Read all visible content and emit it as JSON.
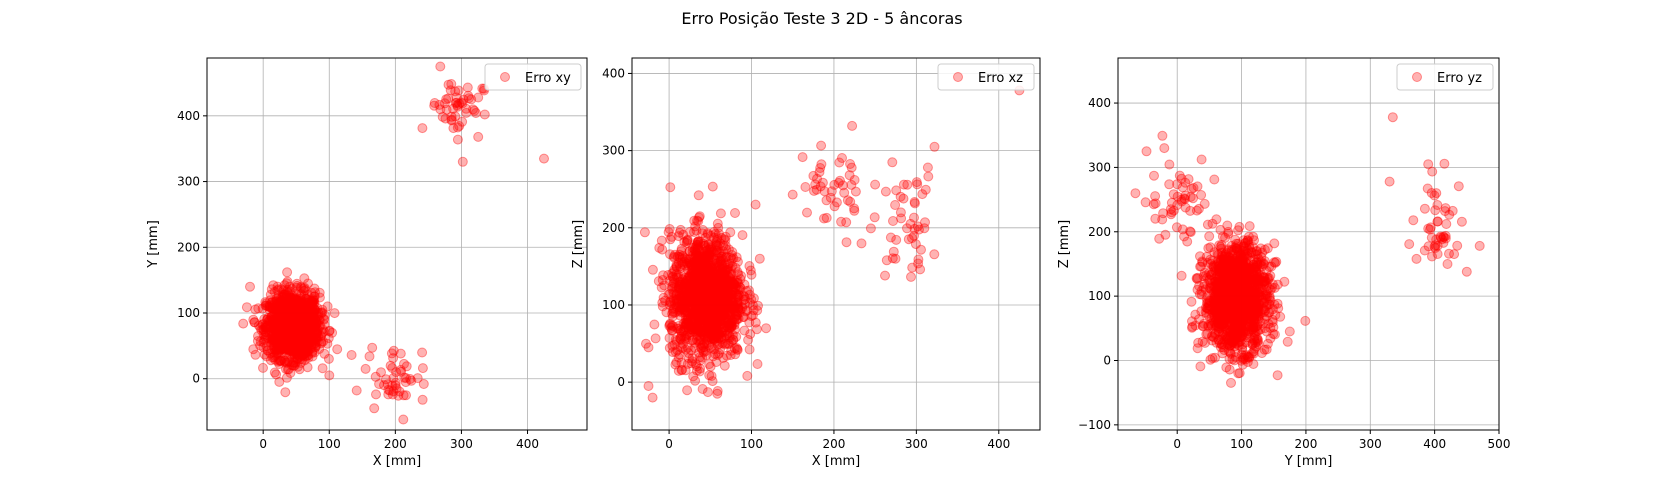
{
  "figure": {
    "suptitle": "Erro Posição Teste 3 2D - 5 âncoras"
  },
  "chart_data": [
    {
      "type": "scatter",
      "xlabel": "X [mm]",
      "ylabel": "Y [mm]",
      "xlim": [
        -85,
        490
      ],
      "ylim": [
        -78,
        488
      ],
      "xticks": [
        0,
        100,
        200,
        300,
        400
      ],
      "yticks": [
        0,
        100,
        200,
        300,
        400
      ],
      "xtick_labels": [
        "0",
        "100",
        "200",
        "300",
        "400"
      ],
      "ytick_labels": [
        "0",
        "100",
        "200",
        "300",
        "400"
      ],
      "grid": true,
      "legend": {
        "position": "top-right",
        "entries": [
          "Erro xy"
        ]
      },
      "marker_color": "#ff0000",
      "marker_alpha": 0.3,
      "series": [
        {
          "name": "Erro xy",
          "clusters": [
            {
              "center": [
                45,
                80
              ],
              "spread": [
                20,
                25
              ],
              "count": 1400
            },
            {
              "center": [
                200,
                8
              ],
              "spread": [
                22,
                22
              ],
              "count": 45
            },
            {
              "center": [
                292,
                415
              ],
              "spread": [
                20,
                22
              ],
              "count": 50
            }
          ],
          "points": [
            [
              425,
              335
            ],
            [
              302,
              330
            ],
            [
              268,
              475
            ],
            [
              243,
              -8
            ],
            [
              212,
              -62
            ],
            [
              168,
              -45
            ],
            [
              155,
              15
            ],
            [
              100,
              5
            ],
            [
              -20,
              140
            ],
            [
              -15,
              45
            ],
            [
              112,
              45
            ]
          ]
        }
      ]
    },
    {
      "type": "scatter",
      "xlabel": "X [mm]",
      "ylabel": "Z [mm]",
      "xlim": [
        -45,
        450
      ],
      "ylim": [
        -62,
        420
      ],
      "xticks": [
        0,
        100,
        200,
        300,
        400
      ],
      "yticks": [
        0,
        100,
        200,
        300,
        400
      ],
      "xtick_labels": [
        "0",
        "100",
        "200",
        "300",
        "400"
      ],
      "ytick_labels": [
        "0",
        "100",
        "200",
        "300",
        "400"
      ],
      "grid": true,
      "legend": {
        "position": "top-right",
        "entries": [
          "Erro xz"
        ]
      },
      "marker_color": "#ff0000",
      "marker_alpha": 0.3,
      "series": [
        {
          "name": "Erro xz",
          "clusters": [
            {
              "center": [
                45,
                110
              ],
              "spread": [
                22,
                40
              ],
              "count": 1400
            },
            {
              "center": [
                200,
                240
              ],
              "spread": [
                22,
                40
              ],
              "count": 45
            },
            {
              "center": [
                290,
                210
              ],
              "spread": [
                18,
                35
              ],
              "count": 45
            }
          ],
          "points": [
            [
              425,
              378
            ],
            [
              322,
              305
            ],
            [
              222,
              332
            ],
            [
              150,
              243
            ],
            [
              105,
              230
            ],
            [
              -20,
              -20
            ],
            [
              -25,
              -5
            ],
            [
              -25,
              45
            ],
            [
              110,
              160
            ],
            [
              262,
              138
            ]
          ]
        }
      ]
    },
    {
      "type": "scatter",
      "xlabel": "Y [mm]",
      "ylabel": "Z [mm]",
      "xlim": [
        -92,
        500
      ],
      "ylim": [
        -108,
        470
      ],
      "xticks": [
        0,
        100,
        200,
        300,
        400,
        500
      ],
      "yticks": [
        -100,
        0,
        100,
        200,
        300,
        400
      ],
      "xtick_labels": [
        "0",
        "100",
        "200",
        "300",
        "400",
        "500"
      ],
      "ytick_labels": [
        "−100",
        "0",
        "100",
        "200",
        "300",
        "400"
      ],
      "grid": true,
      "legend": {
        "position": "top-right",
        "entries": [
          "Erro yz"
        ]
      },
      "marker_color": "#ff0000",
      "marker_alpha": 0.3,
      "series": [
        {
          "name": "Erro yz",
          "clusters": [
            {
              "center": [
                92,
                98
              ],
              "spread": [
                25,
                40
              ],
              "count": 1400
            },
            {
              "center": [
                5,
                250
              ],
              "spread": [
                25,
                35
              ],
              "count": 55
            },
            {
              "center": [
                408,
                210
              ],
              "spread": [
                22,
                35
              ],
              "count": 45
            }
          ],
          "points": [
            [
              335,
              378
            ],
            [
              330,
              278
            ],
            [
              -65,
              260
            ],
            [
              -20,
              330
            ],
            [
              470,
              178
            ],
            [
              450,
              138
            ],
            [
              95,
              -20
            ],
            [
              175,
              45
            ],
            [
              420,
              150
            ],
            [
              390,
              305
            ]
          ]
        }
      ]
    }
  ]
}
